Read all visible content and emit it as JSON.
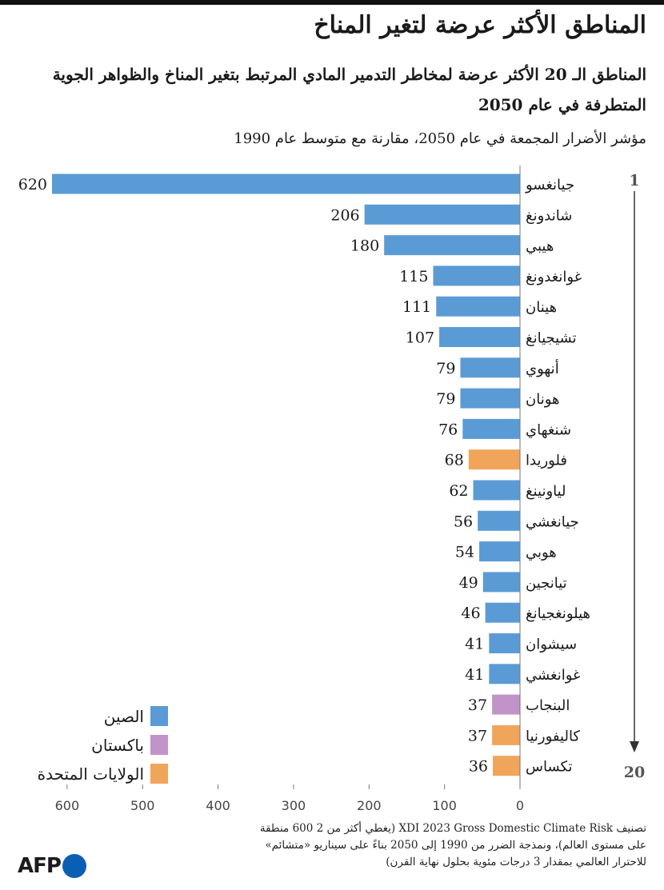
{
  "header": {
    "title": "المناطق الأكثر عرضة لتغير المناخ",
    "subtitle": "المناطق الـ 20 الأكثر عرضة لمخاطر التدمير المادي المرتبط بتغير المناخ والظواهر الجوية المتطرفة في عام 2050",
    "metric": "مؤشر الأضرار المجمعة في عام 2050، مقارنة مع متوسط عام 1990"
  },
  "chart_data": {
    "type": "bar",
    "orientation": "horizontal",
    "categories": [
      "جيانغسو",
      "شاندونغ",
      "هيبي",
      "غوانغدونغ",
      "هينان",
      "تشيجيانغ",
      "أنهوي",
      "هونان",
      "شنغهاي",
      "فلوريدا",
      "لياونينغ",
      "جيانغشي",
      "هوبي",
      "تيانجين",
      "هيلونغجيانغ",
      "سيشوان",
      "غوانغشي",
      "البنجاب",
      "كاليفورنيا",
      "تكساس"
    ],
    "values": [
      620,
      206,
      180,
      115,
      111,
      107,
      79,
      79,
      76,
      68,
      62,
      56,
      54,
      49,
      46,
      41,
      41,
      37,
      37,
      36
    ],
    "groups": [
      "china",
      "china",
      "china",
      "china",
      "china",
      "china",
      "china",
      "china",
      "china",
      "usa",
      "china",
      "china",
      "china",
      "china",
      "china",
      "china",
      "china",
      "pakistan",
      "usa",
      "usa"
    ],
    "xlim": [
      0,
      650
    ],
    "xticks": [
      600,
      500,
      400,
      300,
      200,
      100,
      0
    ],
    "rank_start": "1",
    "rank_end": "20",
    "grid": false,
    "legend": [
      {
        "key": "china",
        "name": "الصين",
        "color": "#5b9bd5"
      },
      {
        "key": "pakistan",
        "name": "باكستان",
        "color": "#c293c9"
      },
      {
        "key": "usa",
        "name": "الولايات المتحدة",
        "color": "#f0a55a"
      }
    ]
  },
  "footnote": {
    "line1": "تصنيف XDI 2023 Gross Domestic Climate Risk (يغطي أكثر من 2 600 منطقة",
    "line2": "على مستوى العالم)، ونمذجة الضرر من 1990 إلى 2050 بناءً على سيناريو «متشائم»",
    "line3": "للاحترار العالمي بمقدار 3 درجات مئوية بحلول نهاية القرن)"
  },
  "logo": {
    "text": "AFP"
  }
}
